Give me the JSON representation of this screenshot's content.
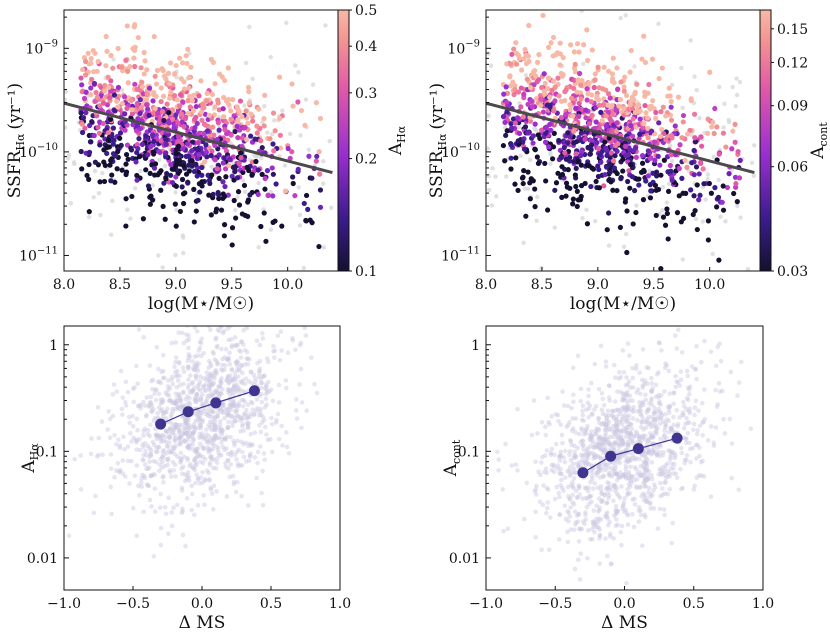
{
  "chart_data": [
    {
      "id": "p1",
      "type": "scatter",
      "description": "SSFR vs stellar mass, colored by A_Halpha",
      "xlabel": "log(M⋆/M☉)",
      "ylabel": "SSFR_Hα (yr⁻¹)",
      "ylabel_main": "SSFR",
      "ylabel_sub": "Hα",
      "ylabel_unit": "(yr⁻¹)",
      "xlim": [
        8.0,
        10.45
      ],
      "ylim": [
        -11.15,
        -8.63
      ],
      "yscale": "log",
      "xticks": [
        "8.0",
        "8.5",
        "9.0",
        "9.5",
        "10.0"
      ],
      "yticks": [
        {
          "exp": "-9",
          "v": -9
        },
        {
          "exp": "-10",
          "v": -10
        },
        {
          "exp": "-11",
          "v": -11
        }
      ],
      "trend_line": {
        "x": [
          8.0,
          10.4
        ],
        "log_y": [
          -9.53,
          -10.2
        ]
      },
      "colorbar": {
        "label_main": "A",
        "label_sub": "Hα",
        "min": 0.1,
        "max": 0.5,
        "scale": "log",
        "ticks": [
          "0.1",
          "0.2",
          "0.3",
          "0.4",
          "0.5"
        ]
      }
    },
    {
      "id": "p2",
      "type": "scatter",
      "description": "SSFR vs stellar mass, colored by A_cont",
      "xlabel": "log(M⋆/M☉)",
      "ylabel_main": "SSFR",
      "ylabel_sub": "Hα",
      "ylabel_unit": "(yr⁻¹)",
      "xlim": [
        8.0,
        10.45
      ],
      "ylim": [
        -11.15,
        -8.63
      ],
      "yscale": "log",
      "xticks": [
        "8.0",
        "8.5",
        "9.0",
        "9.5",
        "10.0"
      ],
      "yticks": [
        {
          "exp": "-9",
          "v": -9
        },
        {
          "exp": "-10",
          "v": -10
        },
        {
          "exp": "-11",
          "v": -11
        }
      ],
      "trend_line": {
        "x": [
          8.0,
          10.4
        ],
        "log_y": [
          -9.53,
          -10.2
        ]
      },
      "colorbar": {
        "label_main": "A",
        "label_sub": "cont",
        "min": 0.03,
        "max": 0.17,
        "scale": "log",
        "ticks": [
          "0.03",
          "0.06",
          "0.09",
          "0.12",
          "0.15"
        ]
      }
    },
    {
      "id": "p3",
      "type": "scatter",
      "description": "A_Halpha vs Delta MS with binned medians",
      "xlabel": "Δ MS",
      "ylabel_main": "A",
      "ylabel_sub": "Hα",
      "xlim": [
        -1.0,
        1.0
      ],
      "ylim": [
        0.005,
        1.5
      ],
      "yscale": "log",
      "xticks": [
        "−1.0",
        "−0.5",
        "0.0",
        "0.5",
        "1.0"
      ],
      "yticks": [
        "1",
        "0.1",
        "0.01"
      ],
      "binned": {
        "x": [
          -0.3,
          -0.1,
          0.1,
          0.38
        ],
        "y": [
          0.18,
          0.235,
          0.285,
          0.37
        ]
      }
    },
    {
      "id": "p4",
      "type": "scatter",
      "description": "A_cont vs Delta MS with binned medians",
      "xlabel": "Δ MS",
      "ylabel_main": "A",
      "ylabel_sub": "cont",
      "xlim": [
        -1.0,
        1.0
      ],
      "ylim": [
        0.005,
        1.5
      ],
      "yscale": "log",
      "xticks": [
        "−1.0",
        "−0.5",
        "0.0",
        "0.5",
        "1.0"
      ],
      "yticks": [
        "1",
        "0.1",
        "0.01"
      ],
      "binned": {
        "x": [
          -0.3,
          -0.1,
          0.1,
          0.38
        ],
        "y": [
          0.063,
          0.09,
          0.106,
          0.133
        ]
      }
    }
  ],
  "colors": {
    "trend_line": "#4a4a4a",
    "binned_marker": "#3f3590",
    "background_points": "#c9c6e0",
    "grey_points": "#d8d8d8"
  }
}
